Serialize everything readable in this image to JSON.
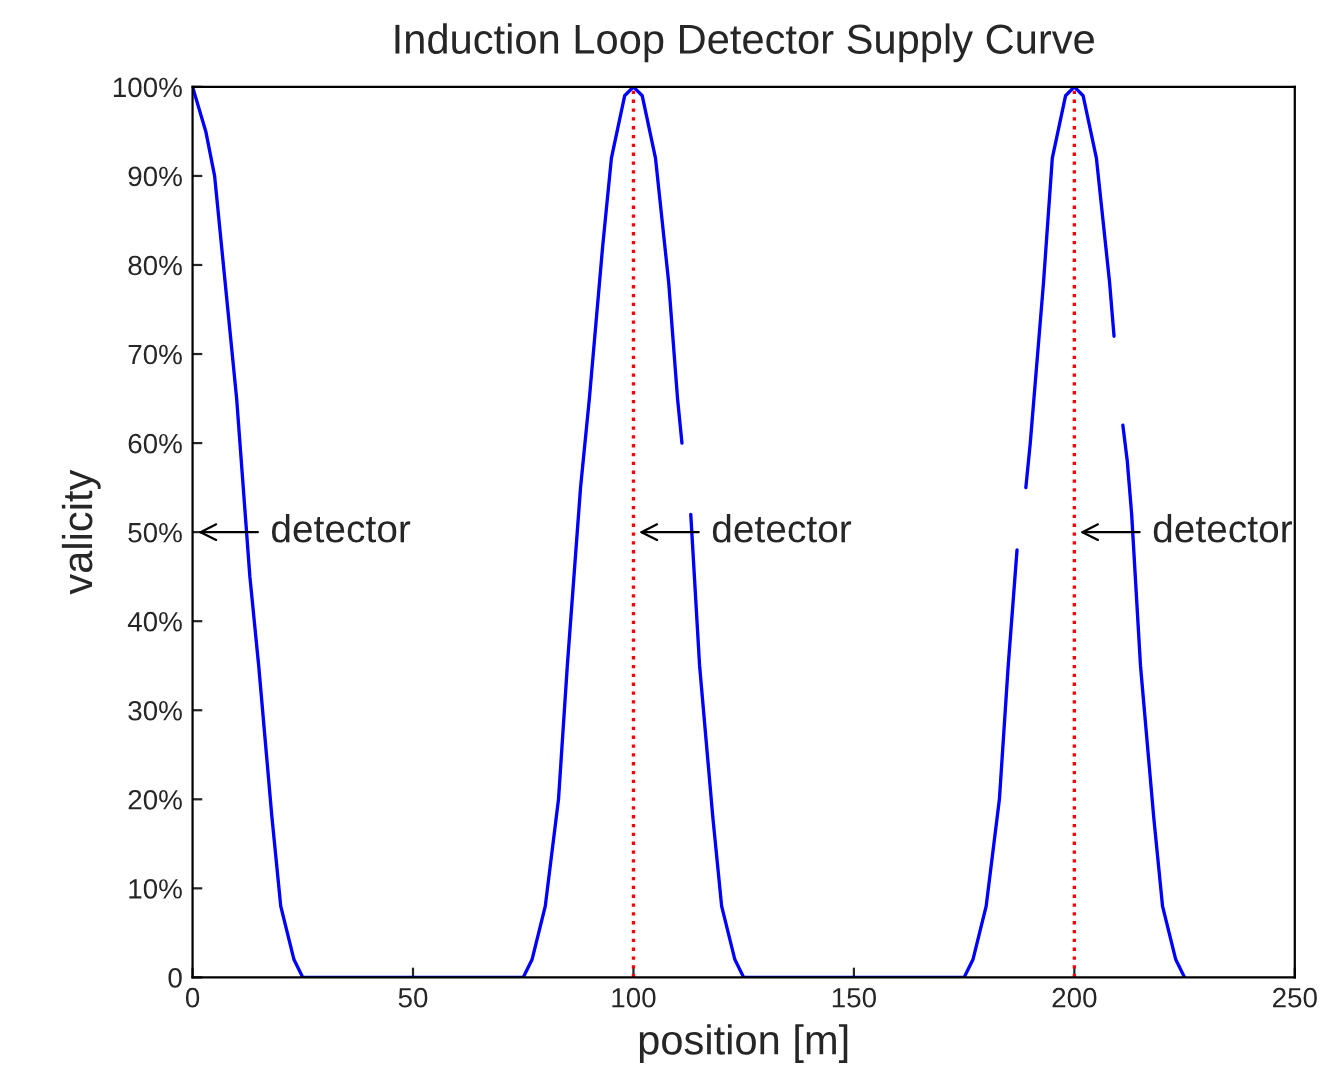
{
  "chart_data": {
    "type": "line",
    "title": "Induction Loop Detector Supply Curve",
    "xlabel": "position [m]",
    "ylabel": "valicity",
    "series": [
      {
        "color": "#0000ff",
        "x": [
          0,
          3,
          5,
          8,
          10,
          13,
          15,
          18,
          20,
          23,
          25,
          75,
          77,
          80,
          83,
          85,
          88,
          90,
          93,
          95,
          98,
          100,
          102,
          105,
          108,
          110,
          111,
          112,
          113,
          115,
          118,
          120,
          123,
          125,
          175,
          177,
          180,
          183,
          185,
          187,
          188,
          189,
          190,
          193,
          195,
          198,
          200,
          202,
          205,
          208,
          209,
          210,
          211,
          212,
          213,
          215,
          218,
          220,
          223,
          225
        ],
        "values": [
          1.0,
          0.95,
          0.9,
          0.75,
          0.65,
          0.45,
          0.35,
          0.18,
          0.08,
          0.02,
          0,
          0,
          0.02,
          0.08,
          0.2,
          0.35,
          0.55,
          0.65,
          0.82,
          0.92,
          0.99,
          1.0,
          0.99,
          0.92,
          0.78,
          0.65,
          0.6,
          null,
          0.52,
          0.35,
          0.18,
          0.08,
          0.02,
          0,
          0,
          0.02,
          0.08,
          0.2,
          0.35,
          0.48,
          null,
          0.55,
          0.6,
          0.78,
          0.92,
          0.99,
          1.0,
          0.99,
          0.92,
          0.78,
          0.72,
          null,
          0.62,
          0.58,
          0.52,
          0.35,
          0.18,
          0.08,
          0.02,
          0
        ]
      }
    ],
    "xlim": [
      0,
      250
    ],
    "xticks": [
      0,
      50,
      100,
      150,
      200,
      250
    ],
    "ylim": [
      0,
      1
    ],
    "yticks": [
      {
        "value": 0,
        "label": "0"
      },
      {
        "value": 0.1,
        "label": "10%"
      },
      {
        "value": 0.2,
        "label": "20%"
      },
      {
        "value": 0.3,
        "label": "30%"
      },
      {
        "value": 0.4,
        "label": "40%"
      },
      {
        "value": 0.5,
        "label": "50%"
      },
      {
        "value": 0.6,
        "label": "60%"
      },
      {
        "value": 0.7,
        "label": "70%"
      },
      {
        "value": 0.8,
        "label": "80%"
      },
      {
        "value": 0.9,
        "label": "90%"
      },
      {
        "value": 1,
        "label": "100%"
      }
    ],
    "ref_lines": [
      {
        "axis": "x",
        "value": 100,
        "color": "#ff0000",
        "line_style": "dotted"
      },
      {
        "axis": "x",
        "value": 200,
        "color": "#ff0000",
        "line_style": "dotted"
      }
    ],
    "annotations": [
      "detector",
      {
        "text": "detector",
        "x": 100,
        "y": 0.5
      },
      {
        "text": "detector",
        "x": 200,
        "y": 0.5
      }
    ],
    "grid": false,
    "legend": false,
    "marker": "none",
    "line_style": "solid"
  }
}
